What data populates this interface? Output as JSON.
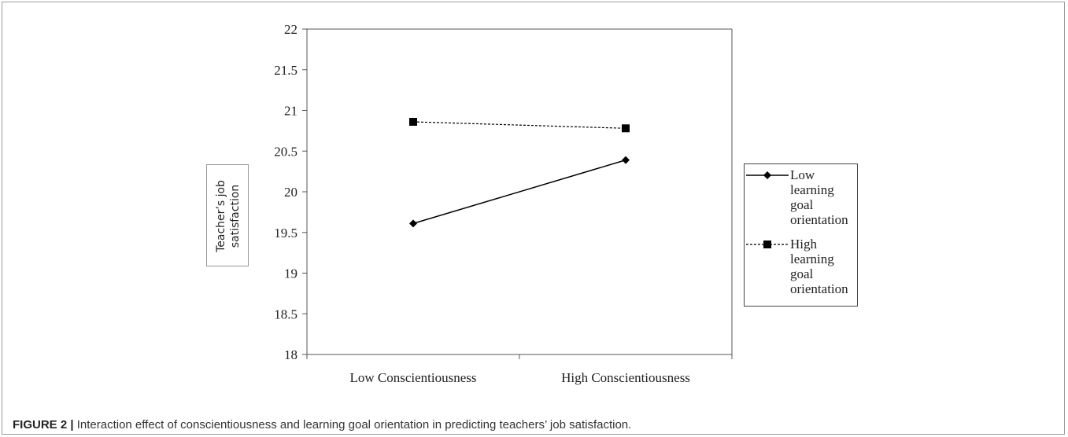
{
  "chart_data": {
    "type": "line",
    "categories": [
      "Low Conscientiousness",
      "High Conscientiousness"
    ],
    "series": [
      {
        "name": "Low learning goal orientation",
        "values": [
          19.61,
          20.39
        ],
        "marker": "diamond",
        "line_style": "solid",
        "color": "#000000"
      },
      {
        "name": "High learning goal orientation",
        "values": [
          20.86,
          20.78
        ],
        "marker": "square",
        "line_style": "dashed",
        "color": "#000000"
      }
    ],
    "ylabel": "Teacher’s job satisfaction",
    "xlabel": "",
    "ylim": [
      18,
      22
    ],
    "yticks": [
      "22",
      "21.5",
      "21",
      "20.5",
      "20",
      "19.5",
      "19",
      "18.5",
      "18"
    ],
    "grid": false,
    "legend_position": "right"
  },
  "caption": {
    "label": "FIGURE 2 |",
    "text": " Interaction effect of conscientiousness and learning goal orientation in predicting teachers’ job satisfaction."
  }
}
